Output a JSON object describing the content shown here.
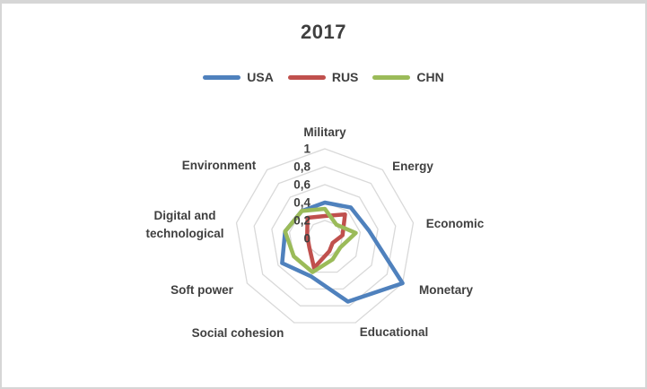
{
  "chart_data": {
    "type": "radar",
    "title": "2017",
    "categories": [
      "Military",
      "Energy",
      "Economic",
      "Monetary",
      "Educational",
      "Social cohesion",
      "Soft power",
      "Digital and technological",
      "Environment"
    ],
    "series": [
      {
        "name": "USA",
        "color": "#4F81BD",
        "values": [
          0.4,
          0.45,
          0.5,
          1.0,
          0.75,
          0.45,
          0.55,
          0.45,
          0.4
        ]
      },
      {
        "name": "RUS",
        "color": "#C0504D",
        "values": [
          0.25,
          0.35,
          0.2,
          0.1,
          0.15,
          0.35,
          0.2,
          0.2,
          0.3
        ]
      },
      {
        "name": "CHN",
        "color": "#9BBB59",
        "values": [
          0.33,
          0.2,
          0.35,
          0.2,
          0.25,
          0.4,
          0.4,
          0.45,
          0.4
        ]
      }
    ],
    "axis": {
      "min": 0,
      "max": 1,
      "tick_interval": 0.2,
      "tick_labels": [
        "0",
        "0,2",
        "0,4",
        "0,6",
        "0,8",
        "1"
      ]
    },
    "grid": "on",
    "grid_color": "#D9D9D9",
    "text_color": "#404040",
    "legend_position": "top"
  }
}
